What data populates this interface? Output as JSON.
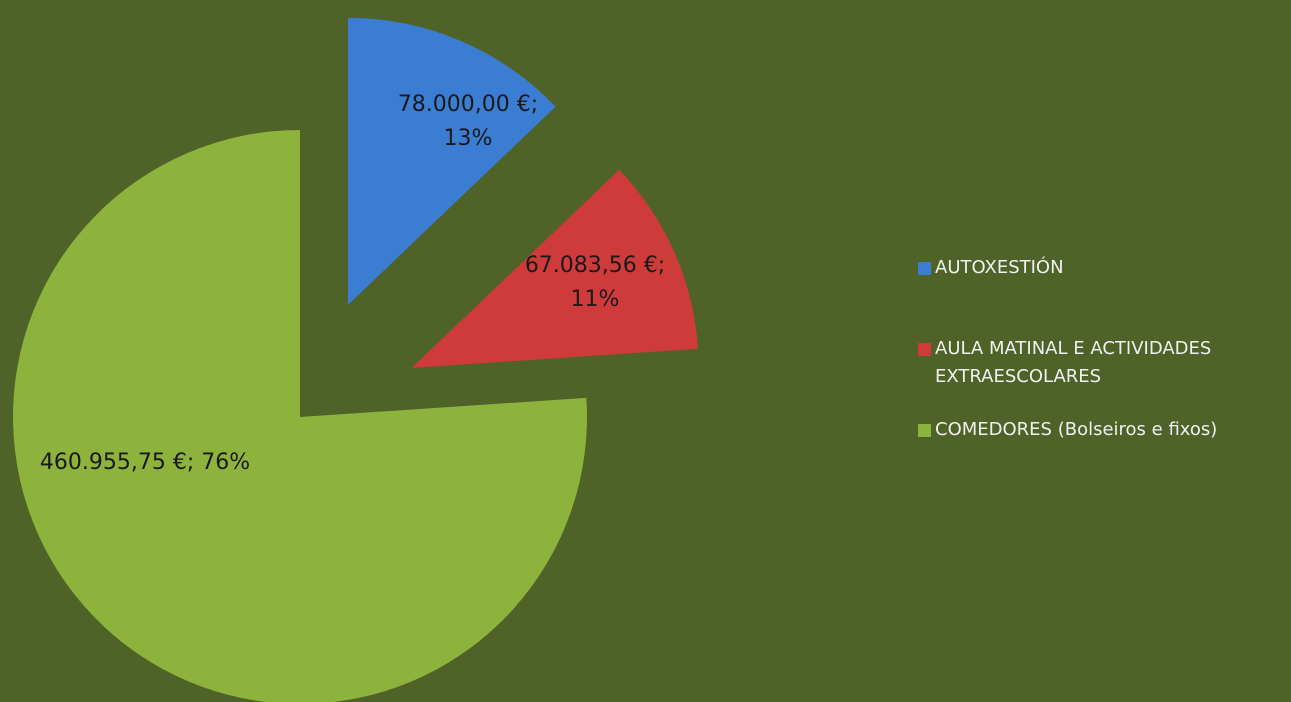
{
  "chart_data": {
    "type": "pie",
    "categories": [
      "AUTOXESTIÓN",
      "AULA MATINAL E ACTIVIDADES EXTRAESCOLARES",
      "COMEDORES (Bolseiros e fixos)"
    ],
    "values": [
      78000,
      67083.56,
      460955.75
    ],
    "value_labels": [
      "78.000,00 €; 13%",
      "67.083,56 €; 11%",
      "460.955,75 €; 76%"
    ],
    "colors": [
      "#3b7dd2",
      "#cf3b3b",
      "#8db33d"
    ],
    "exploded": [
      true,
      true,
      false
    ],
    "legend": "right"
  }
}
